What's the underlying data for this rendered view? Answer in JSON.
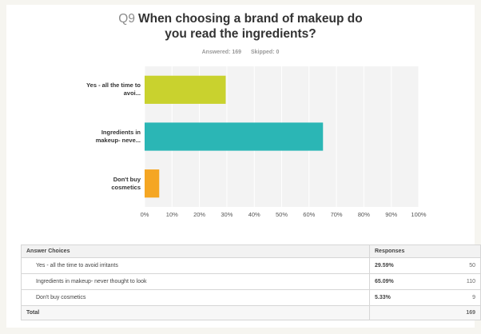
{
  "question": {
    "number": "Q9",
    "title_line1": "When choosing a brand of makeup do",
    "title_line2": "you read the ingredients?",
    "answered": "Answered: 169",
    "skipped": "Skipped: 0"
  },
  "chart_data": {
    "type": "bar",
    "orientation": "horizontal",
    "categories": [
      "Yes - all the time to avoi...",
      "Ingredients in makeup- neve...",
      "Don't buy cosmetics"
    ],
    "values": [
      29.59,
      65.09,
      5.33
    ],
    "colors": [
      "#c9d22e",
      "#2bb6b5",
      "#f5a623"
    ],
    "xlim": [
      0,
      100
    ],
    "xticks": [
      "0%",
      "10%",
      "20%",
      "30%",
      "40%",
      "50%",
      "60%",
      "70%",
      "80%",
      "90%",
      "100%"
    ],
    "grid": true
  },
  "table": {
    "headers": {
      "choices": "Answer Choices",
      "responses": "Responses"
    },
    "rows": [
      {
        "choice": "Yes - all the time to avoid irritants",
        "percent": "29.59%",
        "count": "50"
      },
      {
        "choice": "Ingredients in makeup- never thought to look",
        "percent": "65.09%",
        "count": "110"
      },
      {
        "choice": "Don't buy cosmetics",
        "percent": "5.33%",
        "count": "9"
      }
    ],
    "total_label": "Total",
    "total_count": "169"
  }
}
